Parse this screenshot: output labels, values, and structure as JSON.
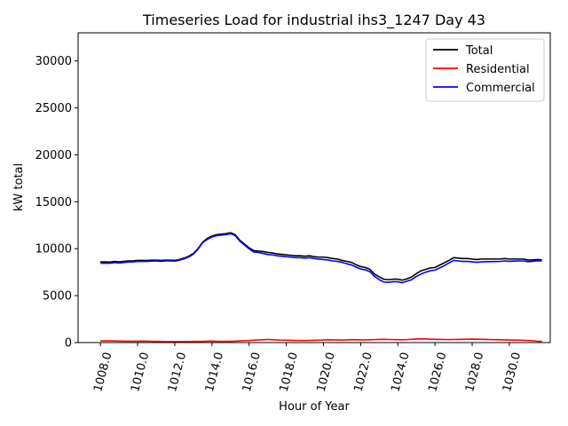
{
  "chart_data": {
    "type": "line",
    "title": "Timeseries Load for industrial ihs3_1247  Day 43",
    "xlabel": "Hour of Year",
    "ylabel": "kW total",
    "xlim": [
      1006.8,
      1032.2
    ],
    "ylim": [
      0,
      33000
    ],
    "x_ticks": [
      1008,
      1010,
      1012,
      1014,
      1016,
      1018,
      1020,
      1022,
      1024,
      1026,
      1028,
      1030
    ],
    "x_tick_labels": [
      "1008.0",
      "1010.0",
      "1012.0",
      "1014.0",
      "1016.0",
      "1018.0",
      "1020.0",
      "1022.0",
      "1024.0",
      "1026.0",
      "1028.0",
      "1030.0"
    ],
    "y_ticks": [
      0,
      5000,
      10000,
      15000,
      20000,
      25000,
      30000
    ],
    "y_tick_labels": [
      "0",
      "5000",
      "10000",
      "15000",
      "20000",
      "25000",
      "30000"
    ],
    "grid": false,
    "legend_position": "top-right",
    "x": [
      1008.0,
      1008.25,
      1008.5,
      1008.75,
      1009.0,
      1009.25,
      1009.5,
      1009.75,
      1010.0,
      1010.25,
      1010.5,
      1010.75,
      1011.0,
      1011.25,
      1011.5,
      1011.75,
      1012.0,
      1012.25,
      1012.5,
      1012.75,
      1013.0,
      1013.25,
      1013.5,
      1013.75,
      1014.0,
      1014.25,
      1014.5,
      1014.75,
      1015.0,
      1015.25,
      1015.5,
      1015.75,
      1016.0,
      1016.25,
      1016.5,
      1016.75,
      1017.0,
      1017.25,
      1017.5,
      1017.75,
      1018.0,
      1018.25,
      1018.5,
      1018.75,
      1019.0,
      1019.25,
      1019.5,
      1019.75,
      1020.0,
      1020.25,
      1020.5,
      1020.75,
      1021.0,
      1021.25,
      1021.5,
      1021.75,
      1022.0,
      1022.25,
      1022.5,
      1022.75,
      1023.0,
      1023.25,
      1023.5,
      1023.75,
      1024.0,
      1024.25,
      1024.5,
      1024.75,
      1025.0,
      1025.25,
      1025.5,
      1025.75,
      1026.0,
      1026.25,
      1026.5,
      1026.75,
      1027.0,
      1027.25,
      1027.5,
      1027.75,
      1028.0,
      1028.25,
      1028.5,
      1028.75,
      1029.0,
      1029.25,
      1029.5,
      1029.75,
      1030.0,
      1030.25,
      1030.5,
      1030.75,
      1031.0,
      1031.25,
      1031.5,
      1031.75
    ],
    "series": [
      {
        "name": "Total",
        "color": "#000000",
        "values": [
          8600,
          8600,
          8580,
          8650,
          8600,
          8650,
          8700,
          8700,
          8750,
          8750,
          8750,
          8780,
          8780,
          8750,
          8780,
          8780,
          8750,
          8850,
          9000,
          9200,
          9500,
          10000,
          10700,
          11100,
          11350,
          11500,
          11550,
          11600,
          11700,
          11500,
          10900,
          10500,
          10100,
          9800,
          9750,
          9700,
          9600,
          9550,
          9450,
          9400,
          9350,
          9300,
          9250,
          9250,
          9200,
          9250,
          9150,
          9100,
          9100,
          9050,
          8950,
          8900,
          8750,
          8650,
          8550,
          8300,
          8100,
          8000,
          7800,
          7300,
          7000,
          6750,
          6700,
          6750,
          6750,
          6650,
          6800,
          7000,
          7350,
          7650,
          7800,
          7950,
          8000,
          8250,
          8500,
          8750,
          9050,
          9000,
          8950,
          8950,
          8900,
          8850,
          8900,
          8900,
          8900,
          8900,
          8900,
          8950,
          8900,
          8900,
          8900,
          8900,
          8800,
          8800,
          8850,
          8800
        ]
      },
      {
        "name": "Residential",
        "color": "#ff0000",
        "values": [
          180,
          190,
          180,
          170,
          160,
          150,
          150,
          140,
          150,
          160,
          150,
          130,
          120,
          120,
          110,
          110,
          100,
          110,
          110,
          110,
          120,
          120,
          120,
          150,
          160,
          140,
          130,
          130,
          140,
          150,
          180,
          200,
          220,
          260,
          280,
          300,
          330,
          300,
          280,
          260,
          250,
          240,
          230,
          220,
          220,
          230,
          240,
          260,
          280,
          300,
          290,
          280,
          270,
          290,
          310,
          300,
          290,
          290,
          300,
          320,
          340,
          350,
          330,
          320,
          310,
          300,
          320,
          350,
          380,
          400,
          380,
          360,
          350,
          340,
          330,
          320,
          330,
          340,
          350,
          360,
          370,
          360,
          350,
          340,
          320,
          310,
          300,
          290,
          280,
          270,
          260,
          240,
          220,
          200,
          150,
          120
        ]
      },
      {
        "name": "Commercial",
        "color": "#0000ff",
        "values": [
          8450,
          8450,
          8450,
          8520,
          8480,
          8520,
          8580,
          8600,
          8650,
          8640,
          8650,
          8680,
          8700,
          8660,
          8700,
          8700,
          8680,
          8780,
          8920,
          9120,
          9420,
          9950,
          10650,
          11000,
          11250,
          11400,
          11450,
          11500,
          11600,
          11400,
          10800,
          10400,
          9980,
          9650,
          9600,
          9500,
          9380,
          9350,
          9250,
          9200,
          9150,
          9100,
          9050,
          9050,
          9000,
          9050,
          8950,
          8880,
          8850,
          8800,
          8700,
          8650,
          8550,
          8400,
          8280,
          8050,
          7850,
          7750,
          7550,
          7050,
          6700,
          6450,
          6420,
          6480,
          6480,
          6380,
          6550,
          6700,
          7050,
          7300,
          7500,
          7650,
          7720,
          7950,
          8200,
          8480,
          8750,
          8700,
          8650,
          8650,
          8600,
          8550,
          8600,
          8620,
          8620,
          8630,
          8640,
          8700,
          8660,
          8680,
          8700,
          8700,
          8620,
          8650,
          8720,
          8700
        ]
      }
    ]
  }
}
